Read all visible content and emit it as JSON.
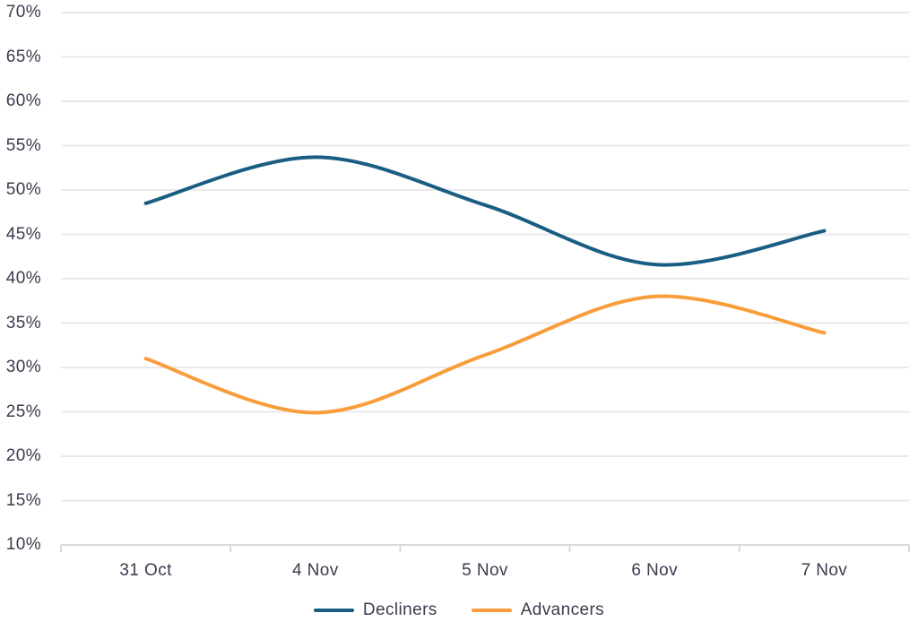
{
  "chart_data": {
    "type": "line",
    "title": "",
    "xlabel": "",
    "ylabel": "",
    "categories": [
      "31 Oct",
      "4 Nov",
      "5 Nov",
      "6 Nov",
      "7 Nov"
    ],
    "series": [
      {
        "name": "Decliners",
        "color": "#195e82",
        "values": [
          48.5,
          53.7,
          48.3,
          41.6,
          45.4
        ]
      },
      {
        "name": "Advancers",
        "color": "#f99d3b",
        "values": [
          31.0,
          24.9,
          31.4,
          38.0,
          33.9
        ]
      }
    ],
    "ylim": [
      10,
      70
    ],
    "ytick_step": 5,
    "ytick_labels": [
      "10%",
      "15%",
      "20%",
      "25%",
      "30%",
      "35%",
      "40%",
      "45%",
      "50%",
      "55%",
      "60%",
      "65%",
      "70%"
    ],
    "grid": "horizontal",
    "line_style": "smooth",
    "legend_position": "bottom"
  },
  "colors": {
    "background": "#ffffff",
    "gridline": "#e9e9e9",
    "axis": "#d8d8d8",
    "text": "#3b3b4f"
  }
}
